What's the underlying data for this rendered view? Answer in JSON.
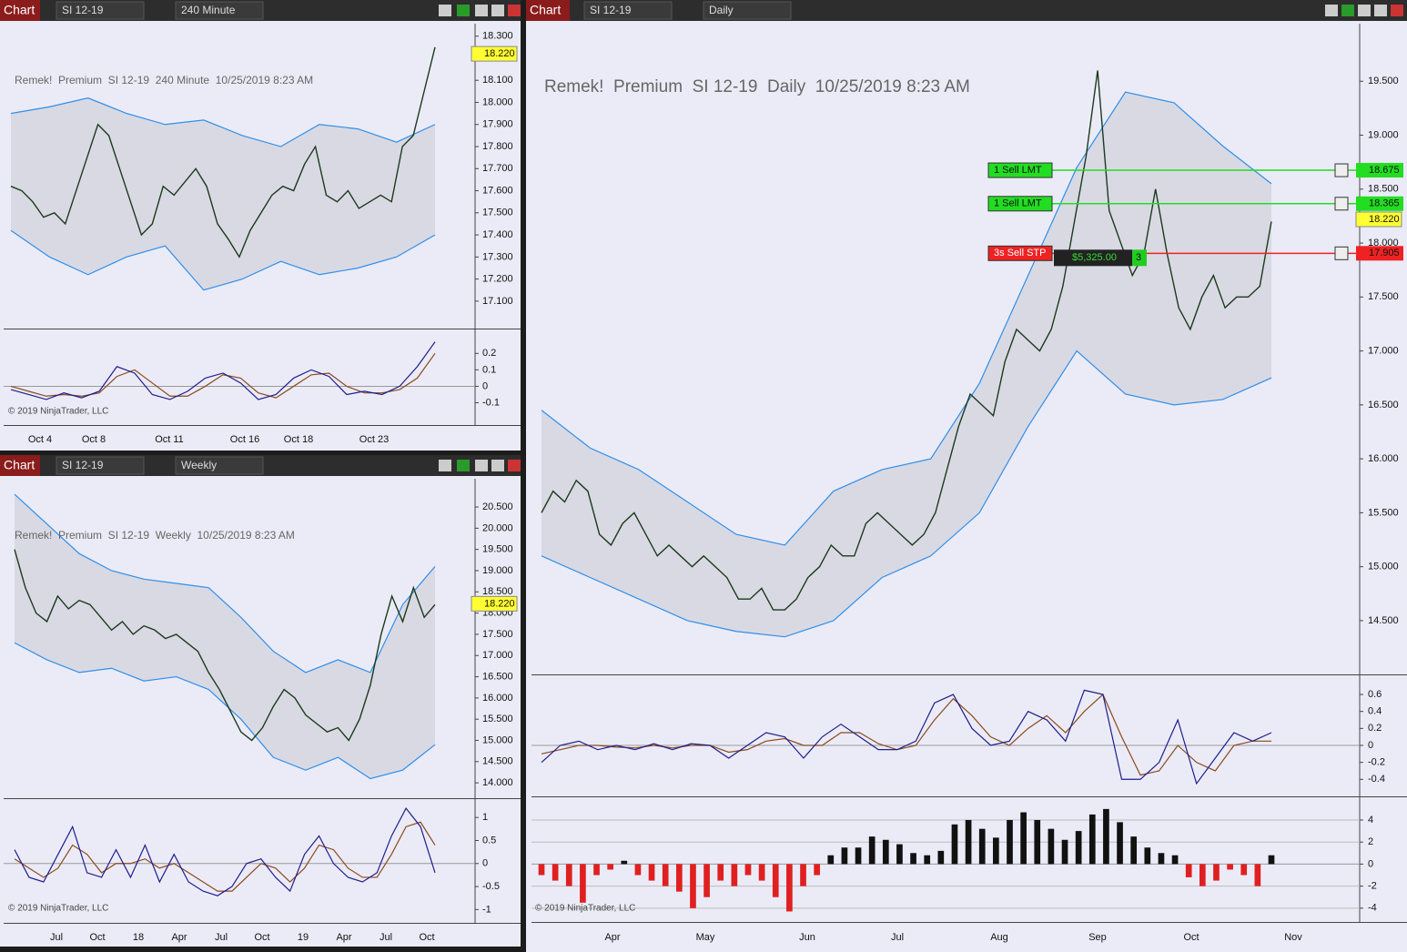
{
  "windows": [
    {
      "toolbar": {
        "label": "Chart",
        "instrument": "SI 12-19",
        "interval": "240 Minute"
      },
      "chart_title": "Remek!  Premium  SI 12-19  240 Minute  10/25/2019 8:23 AM",
      "copyright": "© 2019 NinjaTrader, LLC",
      "price": {
        "type": "line",
        "ylim": [
          16.98,
          18.34
        ],
        "yticks": [
          {
            "value": 18.3,
            "label": "18.300"
          },
          {
            "value": 18.2,
            "label": "18.200"
          },
          {
            "value": 18.1,
            "label": "18.100"
          },
          {
            "value": 18.0,
            "label": "18.000"
          },
          {
            "value": 17.9,
            "label": "17.900"
          },
          {
            "value": 17.8,
            "label": "17.800"
          },
          {
            "value": 17.7,
            "label": "17.700"
          },
          {
            "value": 17.6,
            "label": "17.600"
          },
          {
            "value": 17.5,
            "label": "17.500"
          },
          {
            "value": 17.4,
            "label": "17.400"
          },
          {
            "value": 17.3,
            "label": "17.300"
          },
          {
            "value": 17.2,
            "label": "17.200"
          },
          {
            "value": 17.1,
            "label": "17.100"
          }
        ],
        "closes": [
          17.62,
          17.6,
          17.55,
          17.48,
          17.5,
          17.45,
          17.6,
          17.75,
          17.9,
          17.85,
          17.7,
          17.55,
          17.4,
          17.45,
          17.62,
          17.58,
          17.64,
          17.7,
          17.62,
          17.45,
          17.38,
          17.3,
          17.42,
          17.5,
          17.58,
          17.62,
          17.6,
          17.72,
          17.8,
          17.58,
          17.55,
          17.6,
          17.52,
          17.55,
          17.58,
          17.55,
          17.8,
          17.85,
          18.05,
          18.25
        ],
        "upper_band": [
          17.95,
          17.98,
          18.02,
          17.95,
          17.9,
          17.92,
          17.85,
          17.8,
          17.9,
          17.88,
          17.82,
          17.9
        ],
        "lower_band": [
          17.42,
          17.3,
          17.22,
          17.3,
          17.35,
          17.15,
          17.2,
          17.28,
          17.22,
          17.25,
          17.3,
          17.4
        ],
        "last_price": {
          "value": 18.22,
          "label": "18.220"
        }
      },
      "indicators": [
        {
          "type": "oscillator",
          "ylim": [
            -0.23,
            0.34
          ],
          "yticks": [
            0.2,
            0.1,
            0,
            -0.1
          ],
          "fast": [
            -0.02,
            -0.05,
            -0.08,
            -0.04,
            -0.07,
            -0.03,
            0.12,
            0.08,
            -0.05,
            -0.08,
            -0.03,
            0.05,
            0.08,
            0.02,
            -0.08,
            -0.05,
            0.05,
            0.1,
            0.06,
            -0.05,
            -0.03,
            -0.05,
            0.0,
            0.12,
            0.27
          ],
          "slow": [
            0.0,
            -0.03,
            -0.06,
            -0.05,
            -0.06,
            -0.04,
            0.06,
            0.1,
            0.02,
            -0.06,
            -0.06,
            0.0,
            0.07,
            0.05,
            -0.04,
            -0.07,
            0.0,
            0.07,
            0.08,
            0.0,
            -0.04,
            -0.04,
            -0.02,
            0.05,
            0.2
          ]
        }
      ],
      "x_labels": [
        "Oct 4",
        "Oct 8",
        "Oct 11",
        "Oct 16",
        "Oct 18",
        "Oct 23"
      ]
    },
    {
      "toolbar": {
        "label": "Chart",
        "instrument": "SI 12-19",
        "interval": "Weekly"
      },
      "chart_title": "Remek!  Premium  SI 12-19  Weekly  10/25/2019 8:23 AM",
      "copyright": "© 2019 NinjaTrader, LLC",
      "price": {
        "type": "line",
        "ylim": [
          13.66,
          21.08
        ],
        "yticks": [
          {
            "value": 20.5,
            "label": "20.500"
          },
          {
            "value": 20.0,
            "label": "20.000"
          },
          {
            "value": 19.5,
            "label": "19.500"
          },
          {
            "value": 19.0,
            "label": "19.000"
          },
          {
            "value": 18.5,
            "label": "18.500"
          },
          {
            "value": 18.0,
            "label": "18.000"
          },
          {
            "value": 17.5,
            "label": "17.500"
          },
          {
            "value": 17.0,
            "label": "17.000"
          },
          {
            "value": 16.5,
            "label": "16.500"
          },
          {
            "value": 16.0,
            "label": "16.000"
          },
          {
            "value": 15.5,
            "label": "15.500"
          },
          {
            "value": 15.0,
            "label": "15.000"
          },
          {
            "value": 14.5,
            "label": "14.500"
          },
          {
            "value": 14.0,
            "label": "14.000"
          }
        ],
        "closes": [
          19.5,
          18.6,
          18.0,
          17.8,
          18.4,
          18.1,
          18.3,
          18.2,
          17.9,
          17.6,
          17.8,
          17.5,
          17.7,
          17.6,
          17.4,
          17.5,
          17.3,
          17.1,
          16.6,
          16.2,
          15.7,
          15.2,
          15.0,
          15.3,
          15.8,
          16.2,
          16.0,
          15.6,
          15.4,
          15.2,
          15.3,
          15.0,
          15.5,
          16.3,
          17.5,
          18.4,
          17.8,
          18.6,
          17.9,
          18.2
        ],
        "upper_band": [
          20.8,
          20.1,
          19.4,
          19.0,
          18.8,
          18.7,
          18.6,
          17.9,
          17.1,
          16.6,
          16.9,
          16.6,
          18.2,
          19.1
        ],
        "lower_band": [
          17.3,
          16.9,
          16.6,
          16.7,
          16.4,
          16.5,
          16.2,
          15.5,
          14.6,
          14.3,
          14.6,
          14.1,
          14.3,
          14.9
        ],
        "last_price": {
          "value": 18.22,
          "label": "18.220"
        }
      },
      "indicators": [
        {
          "type": "oscillator",
          "ylim": [
            -1.27,
            1.38
          ],
          "yticks": [
            1,
            0.5,
            0,
            -0.5,
            -1
          ],
          "fast": [
            0.3,
            -0.3,
            -0.4,
            0.2,
            0.8,
            -0.2,
            -0.3,
            0.3,
            -0.3,
            0.4,
            -0.4,
            0.2,
            -0.4,
            -0.6,
            -0.7,
            -0.5,
            0.0,
            0.1,
            -0.3,
            -0.6,
            0.2,
            0.6,
            0.0,
            -0.3,
            -0.4,
            -0.2,
            0.6,
            1.2,
            0.8,
            -0.2
          ],
          "slow": [
            0.1,
            -0.1,
            -0.3,
            -0.1,
            0.4,
            0.2,
            -0.2,
            0.0,
            0.0,
            0.1,
            -0.1,
            0.0,
            -0.2,
            -0.4,
            -0.6,
            -0.6,
            -0.3,
            0.0,
            -0.1,
            -0.4,
            -0.1,
            0.4,
            0.3,
            -0.1,
            -0.3,
            -0.3,
            0.2,
            0.8,
            0.9,
            0.4
          ]
        }
      ],
      "x_labels": [
        "Jul",
        "Oct",
        "18",
        "Apr",
        "Jul",
        "Oct",
        "19",
        "Apr",
        "Jul",
        "Oct"
      ]
    },
    {
      "toolbar": {
        "label": "Chart",
        "instrument": "SI 12-19",
        "interval": "Daily"
      },
      "chart_title": "Remek!  Premium  SI 12-19  Daily  10/25/2019 8:23 AM",
      "copyright": "© 2019 NinjaTrader, LLC",
      "price": {
        "type": "line",
        "ylim": [
          14.01,
          20.0
        ],
        "yticks": [
          {
            "value": 19.5,
            "label": "19.500"
          },
          {
            "value": 19.0,
            "label": "19.000"
          },
          {
            "value": 18.5,
            "label": "18.500"
          },
          {
            "value": 18.0,
            "label": "18.000"
          },
          {
            "value": 17.5,
            "label": "17.500"
          },
          {
            "value": 17.0,
            "label": "17.000"
          },
          {
            "value": 16.5,
            "label": "16.500"
          },
          {
            "value": 16.0,
            "label": "16.000"
          },
          {
            "value": 15.5,
            "label": "15.500"
          },
          {
            "value": 15.0,
            "label": "15.000"
          },
          {
            "value": 14.5,
            "label": "14.500"
          }
        ],
        "closes": [
          15.5,
          15.7,
          15.6,
          15.8,
          15.7,
          15.3,
          15.2,
          15.4,
          15.5,
          15.3,
          15.1,
          15.2,
          15.1,
          15.0,
          15.1,
          15.0,
          14.9,
          14.7,
          14.7,
          14.8,
          14.6,
          14.6,
          14.7,
          14.9,
          15.0,
          15.2,
          15.1,
          15.1,
          15.4,
          15.5,
          15.4,
          15.3,
          15.2,
          15.3,
          15.5,
          15.9,
          16.3,
          16.6,
          16.5,
          16.4,
          16.9,
          17.2,
          17.1,
          17.0,
          17.2,
          17.6,
          18.2,
          18.8,
          19.6,
          18.3,
          18.0,
          17.7,
          17.9,
          18.5,
          17.9,
          17.4,
          17.2,
          17.5,
          17.7,
          17.4,
          17.5,
          17.5,
          17.6,
          18.2
        ],
        "upper_band": [
          16.45,
          16.1,
          15.9,
          15.6,
          15.3,
          15.2,
          15.7,
          15.9,
          16.0,
          16.7,
          17.7,
          18.7,
          19.4,
          19.3,
          18.9,
          18.55
        ],
        "lower_band": [
          15.1,
          14.9,
          14.7,
          14.5,
          14.4,
          14.35,
          14.5,
          14.9,
          15.1,
          15.5,
          16.3,
          17.0,
          16.6,
          16.5,
          16.55,
          16.75
        ],
        "last_price": {
          "value": 18.22,
          "label": "18.220"
        },
        "orders": [
          {
            "text": "1  Sell LMT",
            "price": {
              "value": 18.675,
              "label": "18.675"
            },
            "color": "#22dd22"
          },
          {
            "text": "1  Sell LMT",
            "price": {
              "value": 18.365,
              "label": "18.365"
            },
            "color": "#22dd22"
          },
          {
            "text": "3s  Sell STP",
            "price": {
              "value": 17.905,
              "label": "17.905"
            },
            "color": "#ee2222"
          }
        ],
        "position": {
          "pnl": "$5,325.00",
          "quantity": "3"
        }
      },
      "indicators": [
        {
          "type": "oscillator",
          "ylim": [
            -0.59,
            0.815
          ],
          "yticks": [
            0.6,
            0.4,
            0.2,
            0,
            -0.2,
            -0.4
          ],
          "fast": [
            -0.2,
            0.0,
            0.05,
            -0.05,
            0.0,
            -0.05,
            0.02,
            -0.05,
            0.02,
            0.0,
            -0.15,
            0.0,
            0.15,
            0.1,
            -0.15,
            0.1,
            0.25,
            0.1,
            -0.05,
            -0.05,
            0.05,
            0.5,
            0.6,
            0.2,
            0.0,
            0.05,
            0.4,
            0.3,
            0.05,
            0.65,
            0.6,
            -0.4,
            -0.4,
            -0.2,
            0.3,
            -0.45,
            -0.15,
            0.15,
            0.05,
            0.15
          ],
          "slow": [
            -0.1,
            -0.05,
            0.0,
            0.0,
            -0.02,
            -0.03,
            0.0,
            -0.03,
            0.0,
            0.0,
            -0.08,
            -0.05,
            0.05,
            0.08,
            0.0,
            0.0,
            0.15,
            0.15,
            0.02,
            -0.05,
            0.0,
            0.3,
            0.55,
            0.35,
            0.1,
            0.0,
            0.2,
            0.35,
            0.15,
            0.4,
            0.6,
            0.1,
            -0.35,
            -0.3,
            0.0,
            -0.2,
            -0.3,
            0.0,
            0.05,
            0.05
          ]
        },
        {
          "type": "histogram",
          "ylim": [
            -5.17,
            5.98
          ],
          "yticks": [
            4,
            2,
            0,
            -2,
            -4
          ],
          "values": [
            -1,
            -1.5,
            -2,
            -3.5,
            -1,
            -0.5,
            0.3,
            -1,
            -1.5,
            -2,
            -2.5,
            -4,
            -3,
            -1.5,
            -2,
            -1,
            -1.5,
            -3,
            -4.3,
            -2,
            -1,
            0.8,
            1.5,
            1.5,
            2.5,
            2.2,
            1.8,
            1,
            0.8,
            1.2,
            3.6,
            4,
            3.2,
            2.4,
            4,
            4.7,
            4,
            3.2,
            2.2,
            3,
            4.5,
            5,
            3.8,
            2.5,
            1.5,
            1,
            0.8,
            -1.2,
            -2,
            -1.5,
            -0.5,
            -1,
            -2,
            0.8
          ]
        }
      ],
      "x_labels": [
        "Apr",
        "May",
        "Jun",
        "Jul",
        "Aug",
        "Sep",
        "Oct",
        "Nov"
      ]
    }
  ]
}
